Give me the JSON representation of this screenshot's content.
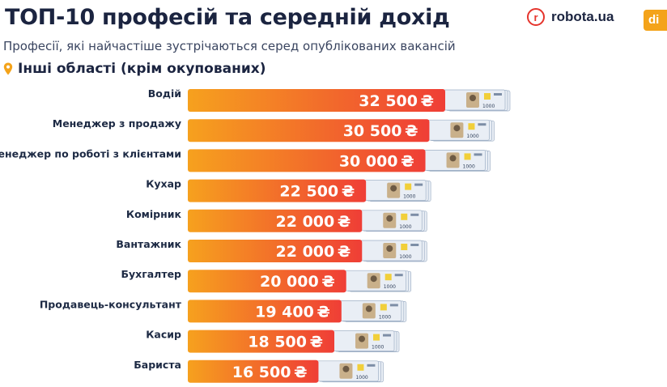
{
  "header": {
    "title": "ТОП-10 професій та середній дохід",
    "subtitle": "Професії, які найчастіше зустрічаються серед опублікованих вакансій",
    "region": "Інші області (крім окупованих)"
  },
  "brand": {
    "logo_text": "robota.ua",
    "logo_letter": "r",
    "partner_text": "di"
  },
  "colors": {
    "bar_start": "#f6a11e",
    "bar_end": "#ef3e36",
    "accent": "#e5342c",
    "pin": "#f4a31a",
    "banknote": "#e9eef5"
  },
  "icons": [
    "map-pin-icon",
    "banknote-icon"
  ],
  "chart_data": {
    "type": "bar",
    "orientation": "horizontal",
    "currency_symbol": "₴",
    "categories": [
      "Водій",
      "Менеджер з продажу",
      "Менеджер по роботі з клієнтами",
      "Кухар",
      "Комірник",
      "Вантажник",
      "Бухгалтер",
      "Продавець-консультант",
      "Касир",
      "Бариста"
    ],
    "values": [
      32500,
      30500,
      30000,
      22500,
      22000,
      22000,
      20000,
      19400,
      18500,
      16500
    ],
    "value_labels": [
      "32 500",
      "30 500",
      "30 000",
      "22 500",
      "22 000",
      "22 000",
      "20 000",
      "19 400",
      "18 500",
      "16 500"
    ],
    "banknote_text": "1000",
    "grid": false,
    "legend": "none"
  }
}
